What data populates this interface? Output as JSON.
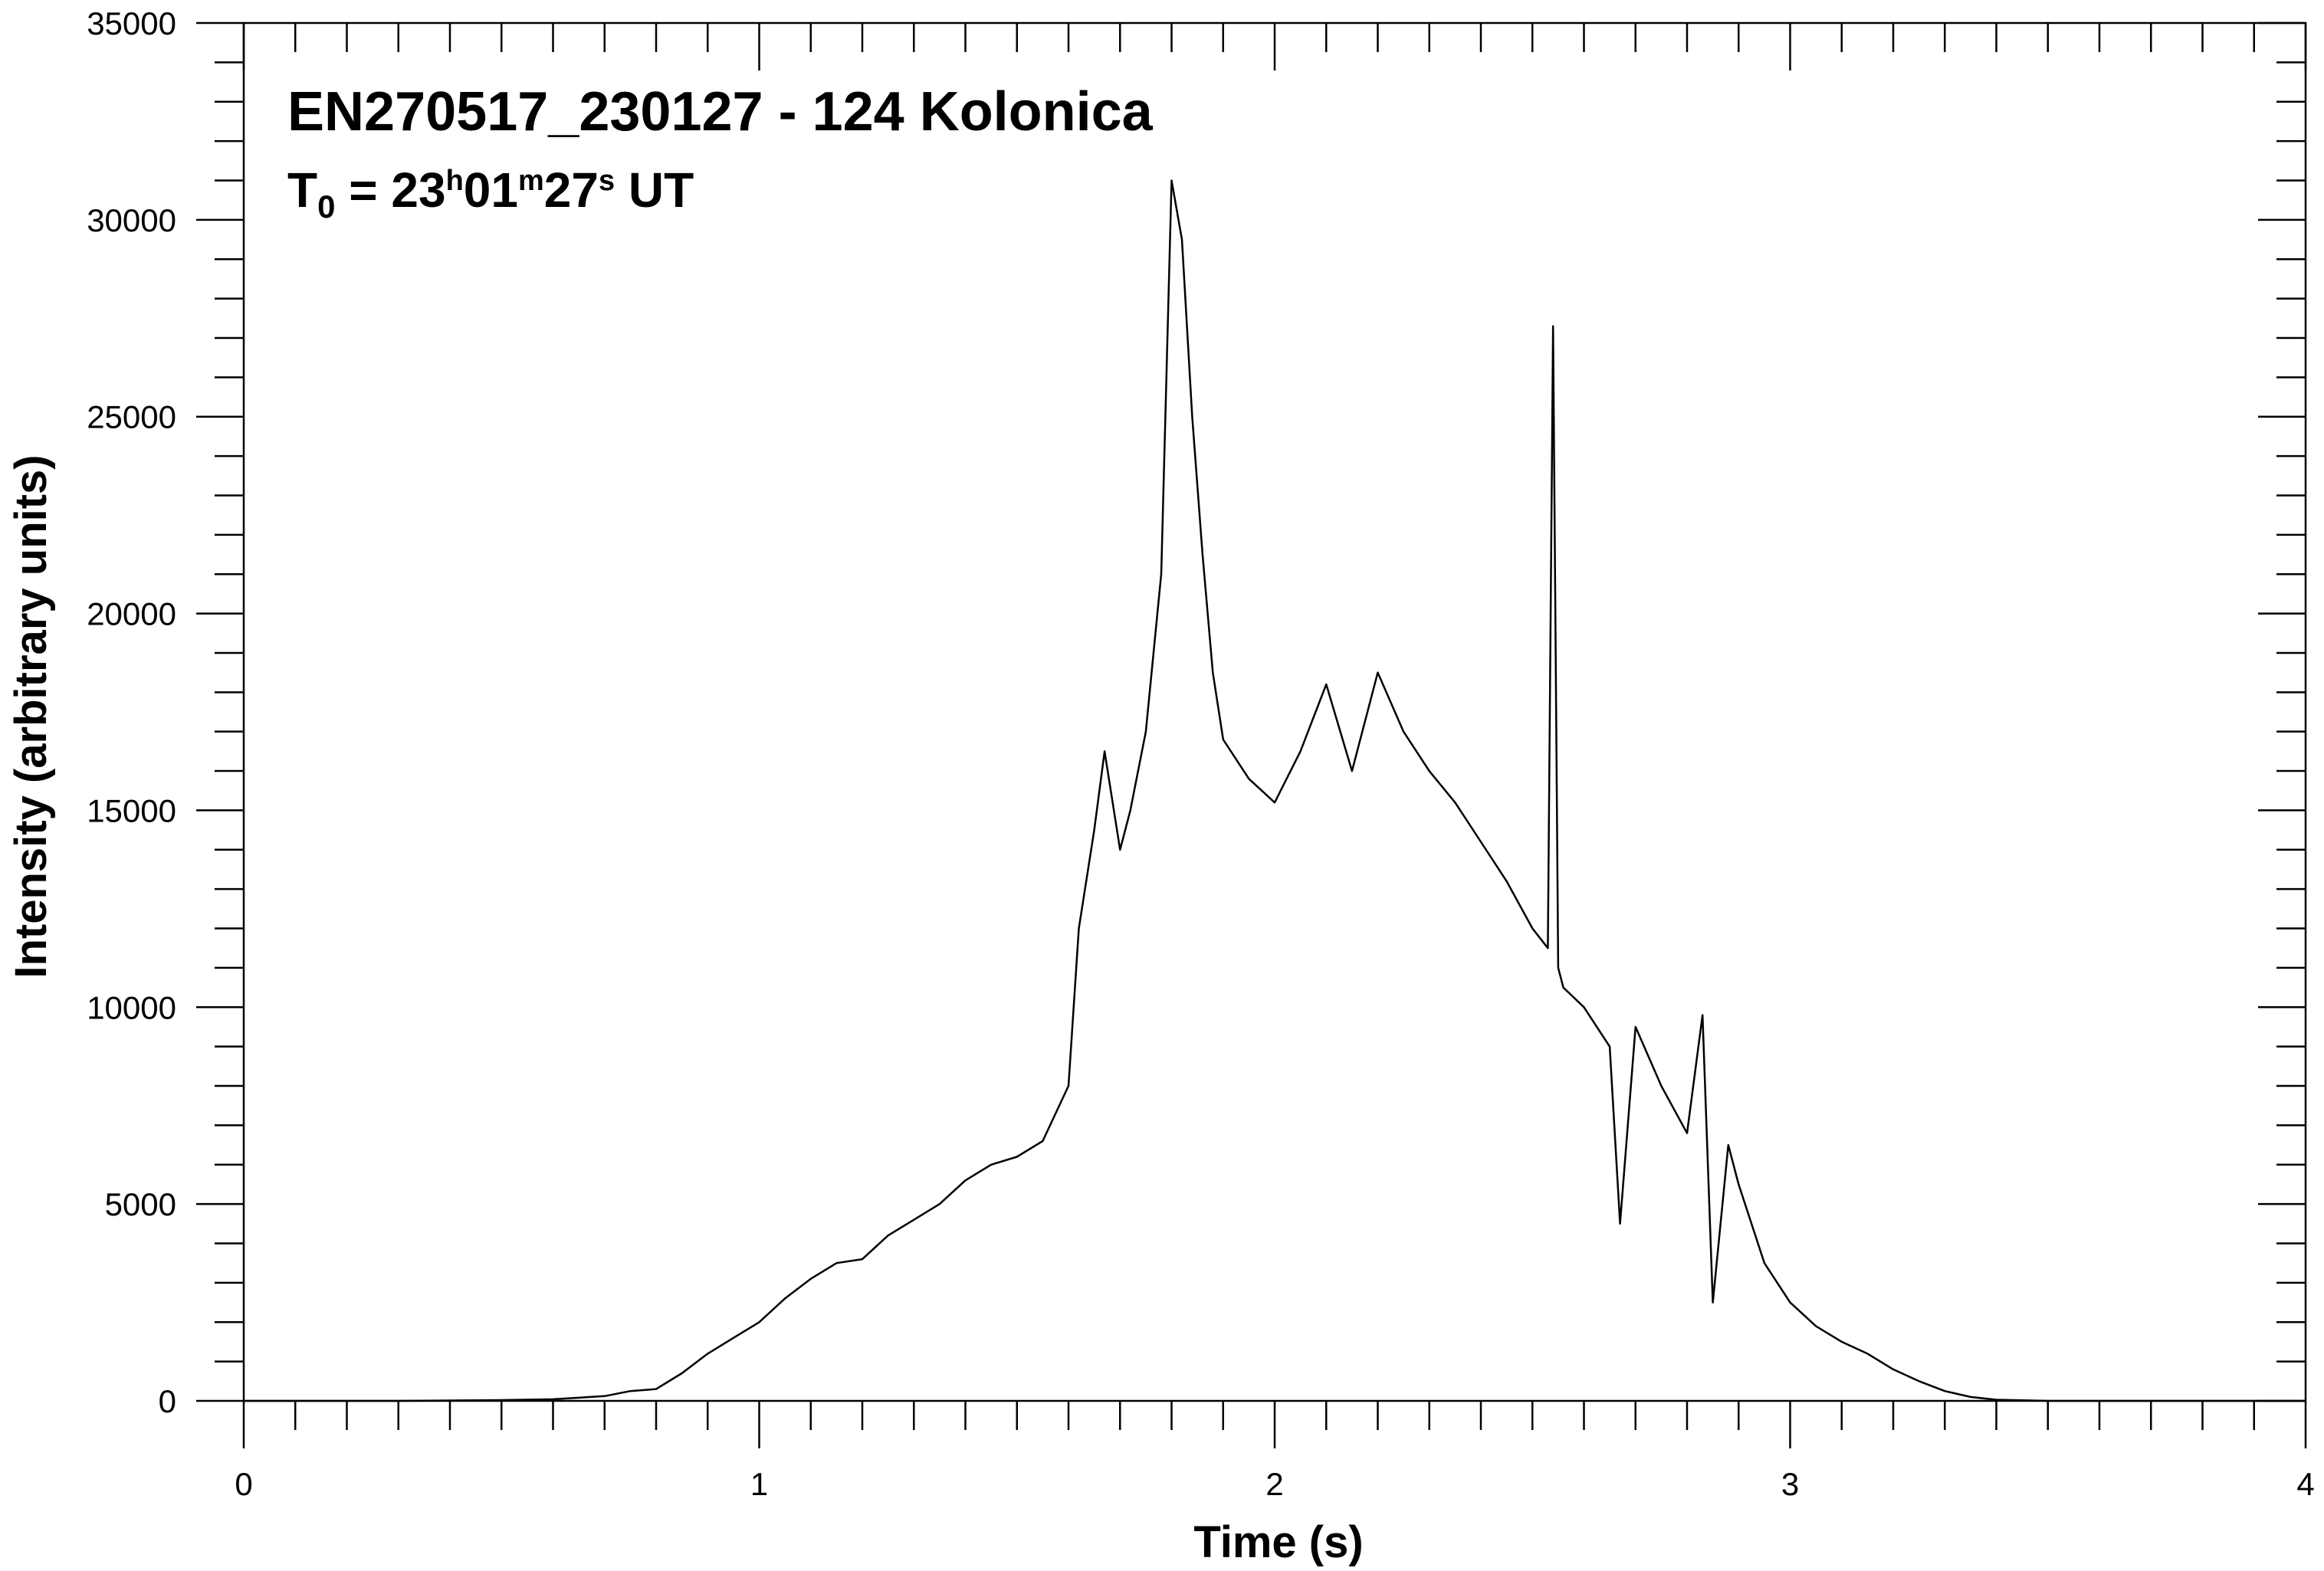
{
  "chart_data": {
    "type": "line",
    "title": "EN270517_230127 - 124 Kolonica",
    "subtitle": {
      "t": "T",
      "t_sub": "0",
      "eq": " = 23",
      "h": "h",
      "m_val": "01",
      "m": "m",
      "s_val": "27",
      "s": "s",
      "ut": " UT"
    },
    "xlabel": "Time (s)",
    "ylabel": "Intensity (arbitrary units)",
    "xlim": [
      0,
      4
    ],
    "ylim": [
      0,
      35000
    ],
    "xticks": [
      "0",
      "1",
      "2",
      "3",
      "4"
    ],
    "yticks": [
      "0",
      "5000",
      "10000",
      "15000",
      "20000",
      "25000",
      "30000",
      "35000"
    ],
    "grid": false,
    "line_color": "#000000",
    "series": [
      {
        "x": [
          0,
          0.1,
          0.2,
          0.3,
          0.4,
          0.5,
          0.6,
          0.7,
          0.75,
          0.8,
          0.85,
          0.9,
          0.95,
          1.0,
          1.05,
          1.1,
          1.15,
          1.2,
          1.25,
          1.3,
          1.35,
          1.4,
          1.45,
          1.5,
          1.55,
          1.6,
          1.62,
          1.65,
          1.67,
          1.7,
          1.72,
          1.75,
          1.78,
          1.8,
          1.82,
          1.84,
          1.86,
          1.88,
          1.9,
          1.95,
          2.0,
          2.05,
          2.1,
          2.15,
          2.2,
          2.25,
          2.3,
          2.35,
          2.4,
          2.45,
          2.5,
          2.53,
          2.54,
          2.55,
          2.56,
          2.6,
          2.65,
          2.67,
          2.7,
          2.75,
          2.8,
          2.83,
          2.85,
          2.88,
          2.9,
          2.95,
          3.0,
          3.05,
          3.1,
          3.15,
          3.2,
          3.25,
          3.3,
          3.35,
          3.4,
          3.5,
          3.7,
          4.0
        ],
        "y": [
          0,
          0,
          0,
          0,
          10,
          20,
          40,
          120,
          250,
          300,
          700,
          1200,
          1600,
          2000,
          2600,
          3100,
          3500,
          3600,
          4200,
          4600,
          5000,
          5600,
          6000,
          6200,
          6600,
          8000,
          12000,
          14500,
          16500,
          14000,
          15000,
          17000,
          21000,
          31000,
          29500,
          25000,
          21500,
          18500,
          16800,
          15800,
          15200,
          16500,
          18200,
          16000,
          18500,
          17000,
          16000,
          15200,
          14200,
          13200,
          12000,
          11500,
          27300,
          11000,
          10500,
          10000,
          9000,
          4500,
          9500,
          8000,
          6800,
          9800,
          2500,
          6500,
          5500,
          3500,
          2500,
          1900,
          1500,
          1200,
          800,
          500,
          250,
          100,
          30,
          0,
          0,
          0
        ]
      }
    ]
  }
}
